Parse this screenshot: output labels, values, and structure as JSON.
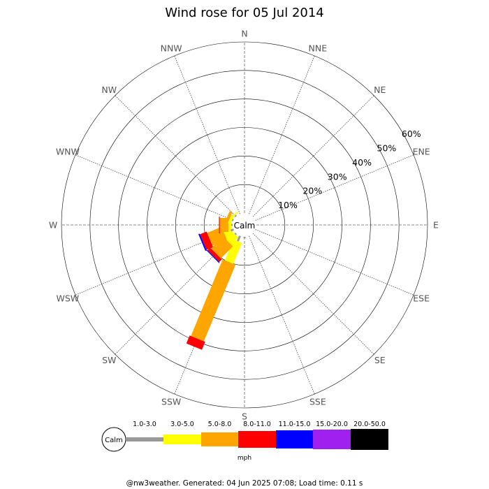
{
  "page": {
    "title": "Wind rose for 05 Jul 2014",
    "footer": "@nw3weather. Generated: 04 Jun 2025 07:08; Load time: 0.11 s"
  },
  "chart_data": {
    "type": "wind-rose",
    "title": "Wind rose for 05 Jul 2014",
    "calm_label": "Calm",
    "units_label": "mph",
    "radial_max": 60,
    "radial_ticks": [
      {
        "value": 10,
        "label": "10%"
      },
      {
        "value": 20,
        "label": "20%"
      },
      {
        "value": 30,
        "label": "30%"
      },
      {
        "value": 40,
        "label": "40%"
      },
      {
        "value": 50,
        "label": "50%"
      },
      {
        "value": 60,
        "label": "60%"
      }
    ],
    "directions": [
      "N",
      "NNE",
      "NE",
      "ENE",
      "E",
      "ESE",
      "SE",
      "SSE",
      "S",
      "SSW",
      "SW",
      "WSW",
      "W",
      "WNW",
      "NW",
      "NNW"
    ],
    "speed_bins": [
      {
        "label": "1.0-3.0",
        "color": "#999999"
      },
      {
        "label": "3.0-5.0",
        "color": "#ffff00"
      },
      {
        "label": "5.0-8.0",
        "color": "#ffa500"
      },
      {
        "label": "8.0-11.0",
        "color": "#ff0000"
      },
      {
        "label": "11.0-15.0",
        "color": "#0000ff"
      },
      {
        "label": "15.0-20.0",
        "color": "#a020f0"
      },
      {
        "label": "20.0-50.0",
        "color": "#000000"
      }
    ],
    "series": [
      {
        "direction": "S",
        "cumulative": [
          0.5
        ]
      },
      {
        "direction": "SSW",
        "cumulative": [
          2.0,
          10.0,
          39.0,
          42.0
        ]
      },
      {
        "direction": "SW",
        "cumulative": [
          0.5,
          4.0,
          10.0,
          11.3,
          11.6
        ]
      },
      {
        "direction": "WSW",
        "cumulative": [
          1.0,
          3.5,
          9.0,
          11.5,
          12.0
        ]
      },
      {
        "direction": "W",
        "cumulative": [
          0.5,
          1.5,
          4.5,
          4.8
        ]
      },
      {
        "direction": "WNW",
        "cumulative": [
          0.5,
          1.5,
          2.5
        ]
      },
      {
        "direction": "NW",
        "cumulative": [
          0.5,
          1.0
        ]
      }
    ]
  }
}
